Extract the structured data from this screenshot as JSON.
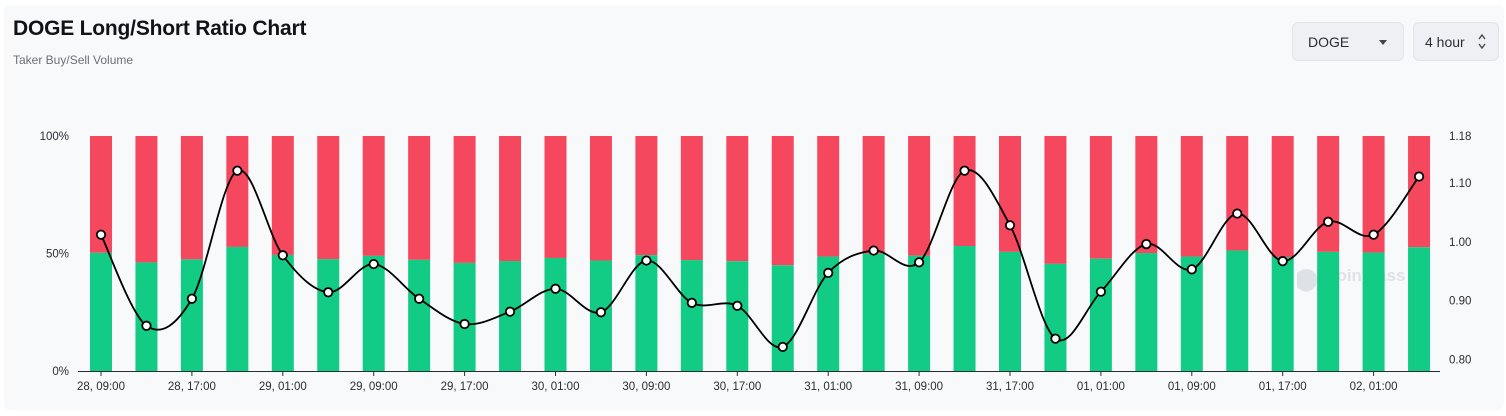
{
  "header": {
    "title": "DOGE Long/Short Ratio Chart",
    "subtitle": "Taker Buy/Sell Volume"
  },
  "controls": {
    "symbol": {
      "value": "DOGE",
      "icon": "chevron-down-icon"
    },
    "interval": {
      "value": "4 hour",
      "icon": "up-down-chevron-icon"
    }
  },
  "watermark": "coinglass",
  "chart_data": {
    "type": "bar",
    "stacked_percent": true,
    "left_axis": {
      "ticks": [
        "0%",
        "50%",
        "100%"
      ],
      "range": [
        0,
        100
      ]
    },
    "right_axis": {
      "ticks": [
        "0.80",
        "0.90",
        "1.00",
        "1.10",
        "1.18"
      ],
      "range": [
        0.78,
        1.18
      ]
    },
    "x_ticks": [
      "28, 09:00",
      "28, 17:00",
      "29, 01:00",
      "29, 09:00",
      "29, 17:00",
      "30, 01:00",
      "30, 09:00",
      "30, 17:00",
      "31, 01:00",
      "31, 09:00",
      "31, 17:00",
      "01, 01:00",
      "01, 09:00",
      "01, 17:00",
      "02, 01:00"
    ],
    "x_tick_every": 2,
    "series": [
      {
        "key": "buy",
        "color": "#12cb85",
        "values": [
          50.3,
          46.2,
          47.5,
          52.8,
          49.4,
          47.6,
          49.0,
          47.3,
          46.0,
          46.8,
          48.1,
          47.0,
          49.3,
          47.2,
          46.7,
          45.0,
          48.7,
          49.9,
          49.1,
          53.2,
          50.7,
          45.6,
          47.8,
          50.2,
          48.7,
          51.3,
          48.5,
          50.7,
          50.4,
          52.7
        ]
      },
      {
        "key": "sell",
        "color": "#f5475d",
        "values": [
          49.7,
          53.8,
          52.5,
          47.2,
          50.6,
          52.4,
          51.0,
          52.7,
          54.0,
          53.2,
          51.9,
          53.0,
          50.7,
          52.8,
          53.3,
          55.0,
          51.3,
          50.1,
          50.9,
          46.8,
          49.3,
          54.4,
          52.2,
          49.8,
          51.3,
          48.7,
          51.5,
          49.3,
          49.6,
          47.3
        ]
      },
      {
        "key": "ratio",
        "type": "line",
        "color": "#000000",
        "values": [
          1.012,
          0.857,
          0.903,
          1.121,
          0.977,
          0.914,
          0.962,
          0.903,
          0.86,
          0.881,
          0.92,
          0.88,
          0.968,
          0.896,
          0.891,
          0.821,
          0.947,
          0.985,
          0.965,
          1.121,
          1.028,
          0.835,
          0.915,
          0.996,
          0.953,
          1.048,
          0.967,
          1.034,
          1.012,
          1.111
        ]
      }
    ]
  }
}
